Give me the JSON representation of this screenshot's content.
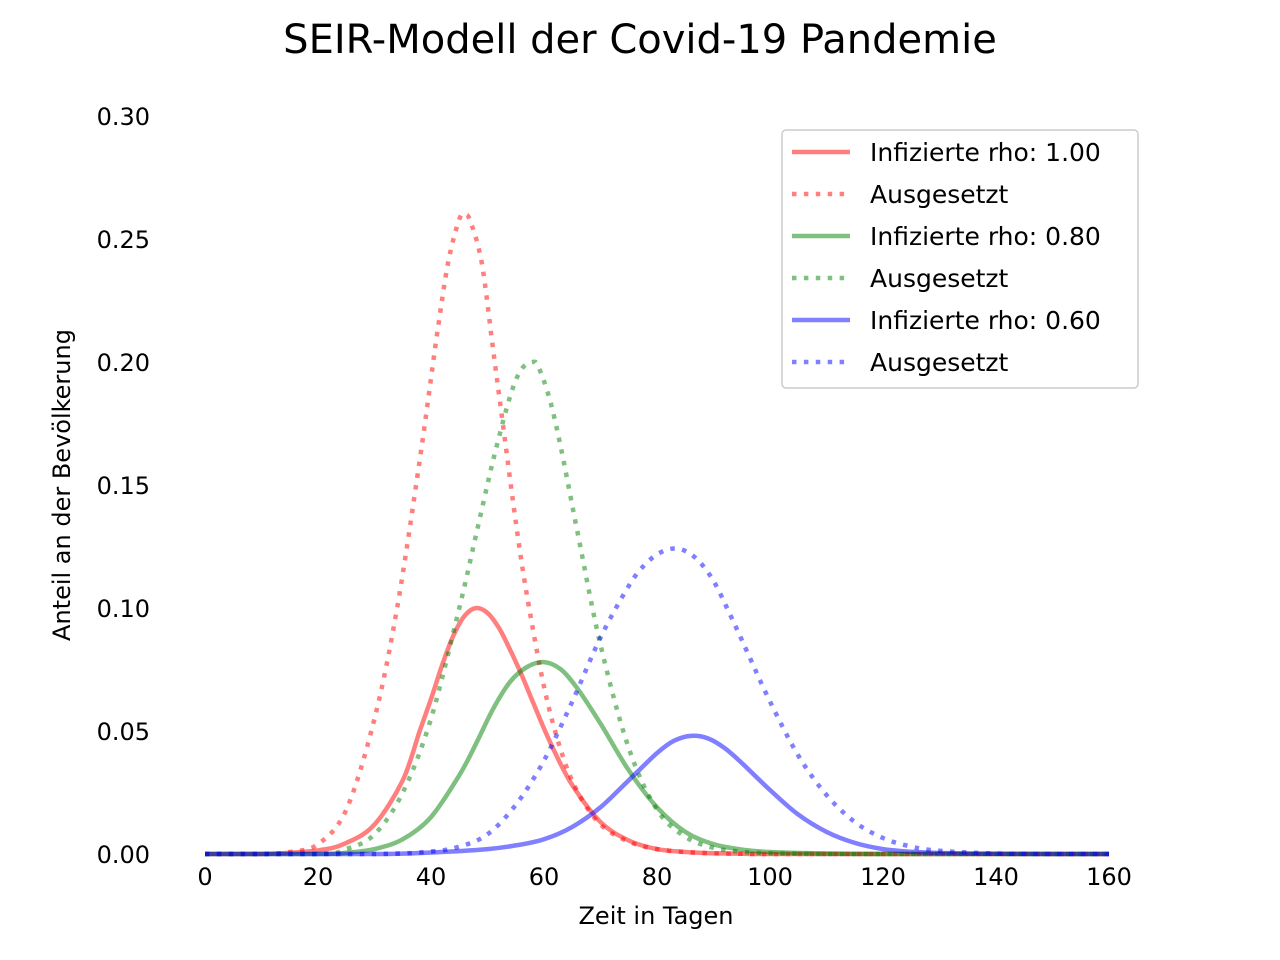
{
  "chart_data": {
    "type": "line",
    "title": "SEIR-Modell der Covid-19 Pandemie",
    "xlabel": "Zeit in Tagen",
    "ylabel": "Anteil an der Bevölkerung",
    "xlim": [
      0,
      160
    ],
    "ylim": [
      0,
      0.3
    ],
    "x_ticks": [
      "0",
      "20",
      "40",
      "60",
      "80",
      "100",
      "120",
      "140",
      "160"
    ],
    "y_ticks": [
      "0.00",
      "0.05",
      "0.10",
      "0.15",
      "0.20",
      "0.25",
      "0.30"
    ],
    "grid": false,
    "legend_position": "top-right",
    "series": [
      {
        "name": "Infizierte rho: 1.00",
        "color": "#ff0000",
        "style": "solid",
        "x": [
          0,
          10,
          20,
          25,
          30,
          35,
          38,
          40,
          42,
          44,
          46,
          48,
          50,
          52,
          54,
          56,
          58,
          60,
          62,
          65,
          70,
          75,
          80,
          85,
          90,
          95,
          100,
          110,
          120,
          130,
          140,
          160
        ],
        "y": [
          0.0,
          0.0,
          0.0015,
          0.0045,
          0.012,
          0.03,
          0.05,
          0.063,
          0.077,
          0.089,
          0.097,
          0.1,
          0.098,
          0.092,
          0.083,
          0.073,
          0.062,
          0.051,
          0.041,
          0.028,
          0.013,
          0.0055,
          0.002,
          0.0008,
          0.0003,
          0.0001,
          0.0,
          0.0,
          0.0,
          0.0,
          0.0,
          0.0
        ]
      },
      {
        "name": "Ausgesetzt",
        "color": "#ff0000",
        "style": "dotted",
        "x": [
          0,
          10,
          15,
          20,
          25,
          30,
          34,
          38,
          41,
          43,
          45,
          46,
          47,
          49,
          51,
          53,
          55,
          57,
          60,
          63,
          66,
          70,
          75,
          80,
          85,
          90,
          95,
          100,
          110,
          120,
          140,
          160
        ],
        "y": [
          0.0,
          0.0,
          0.0008,
          0.004,
          0.018,
          0.055,
          0.1,
          0.16,
          0.21,
          0.24,
          0.258,
          0.26,
          0.257,
          0.24,
          0.205,
          0.17,
          0.135,
          0.105,
          0.068,
          0.042,
          0.025,
          0.012,
          0.005,
          0.002,
          0.0008,
          0.0003,
          0.0001,
          0.0,
          0.0,
          0.0,
          0.0,
          0.0
        ]
      },
      {
        "name": "Infizierte rho: 0.80",
        "color": "#008000",
        "style": "solid",
        "x": [
          0,
          20,
          25,
          30,
          35,
          40,
          45,
          48,
          51,
          54,
          57,
          60,
          63,
          66,
          70,
          75,
          80,
          85,
          90,
          95,
          100,
          110,
          120,
          130,
          140,
          160
        ],
        "y": [
          0.0,
          0.0,
          0.0005,
          0.002,
          0.006,
          0.015,
          0.032,
          0.045,
          0.059,
          0.07,
          0.076,
          0.078,
          0.075,
          0.067,
          0.053,
          0.034,
          0.019,
          0.009,
          0.004,
          0.0018,
          0.0008,
          0.0002,
          0.0,
          0.0,
          0.0,
          0.0
        ]
      },
      {
        "name": "Ausgesetzt",
        "color": "#008000",
        "style": "dotted",
        "x": [
          0,
          20,
          25,
          30,
          35,
          40,
          45,
          48,
          51,
          54,
          56,
          58,
          59,
          61,
          63,
          66,
          70,
          75,
          80,
          85,
          90,
          95,
          100,
          110,
          120,
          130,
          160
        ],
        "y": [
          0.0,
          0.0,
          0.002,
          0.008,
          0.025,
          0.055,
          0.1,
          0.13,
          0.16,
          0.186,
          0.197,
          0.2,
          0.198,
          0.185,
          0.165,
          0.13,
          0.085,
          0.043,
          0.018,
          0.007,
          0.0025,
          0.0009,
          0.0003,
          0.0,
          0.0,
          0.0,
          0.0
        ]
      },
      {
        "name": "Infizierte rho: 0.60",
        "color": "#0000ff",
        "style": "solid",
        "x": [
          0,
          30,
          40,
          50,
          55,
          60,
          65,
          70,
          75,
          80,
          83,
          86,
          89,
          92,
          95,
          100,
          105,
          110,
          115,
          120,
          125,
          130,
          140,
          150,
          160
        ],
        "y": [
          0.0,
          0.0,
          0.0006,
          0.002,
          0.0035,
          0.006,
          0.011,
          0.019,
          0.03,
          0.041,
          0.046,
          0.048,
          0.047,
          0.043,
          0.037,
          0.026,
          0.016,
          0.009,
          0.0045,
          0.002,
          0.0009,
          0.0004,
          0.0001,
          0.0,
          0.0
        ]
      },
      {
        "name": "Ausgesetzt",
        "color": "#0000ff",
        "style": "dotted",
        "x": [
          0,
          30,
          40,
          45,
          50,
          55,
          60,
          65,
          70,
          75,
          78,
          81,
          84,
          87,
          90,
          93,
          96,
          100,
          105,
          110,
          115,
          120,
          125,
          130,
          140,
          150,
          160
        ],
        "y": [
          0.0,
          0.0,
          0.001,
          0.003,
          0.008,
          0.02,
          0.038,
          0.062,
          0.088,
          0.109,
          0.118,
          0.123,
          0.124,
          0.12,
          0.111,
          0.097,
          0.082,
          0.062,
          0.04,
          0.024,
          0.013,
          0.0065,
          0.003,
          0.0013,
          0.0002,
          0.0,
          0.0
        ]
      }
    ]
  }
}
